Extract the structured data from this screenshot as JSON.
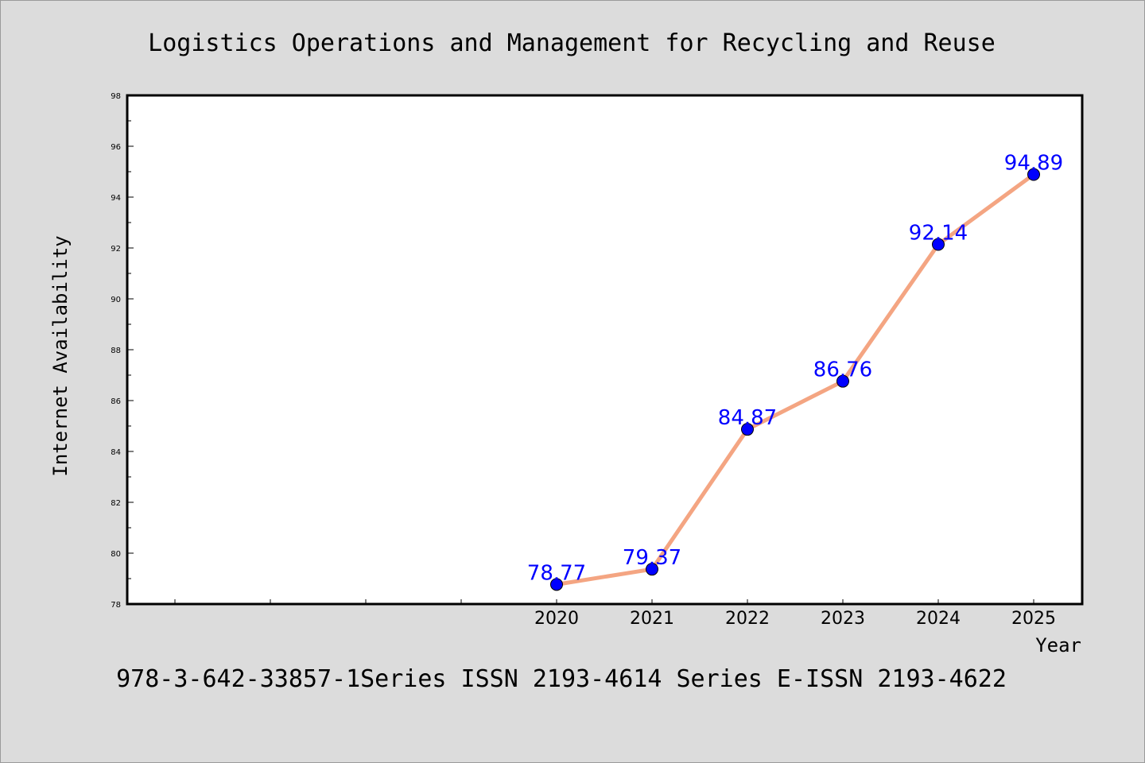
{
  "chart_data": {
    "type": "line",
    "title": "Logistics Operations and Management for Recycling and Reuse",
    "xlabel": "Year",
    "ylabel": "Internet Availability",
    "categories": [
      "2020",
      "2021",
      "2022",
      "2023",
      "2024",
      "2025"
    ],
    "series": [
      {
        "values": [
          78.77,
          79.37,
          84.87,
          86.76,
          92.14,
          94.89
        ]
      }
    ],
    "data_labels": [
      "78.77",
      "79.37",
      "84.87",
      "86.76",
      "92.14",
      "94.89"
    ],
    "ylim": [
      78,
      98
    ],
    "yticks": [
      "78",
      "80",
      "82",
      "84",
      "86",
      "88",
      "90",
      "92",
      "94",
      "96",
      "98"
    ],
    "grid": false,
    "legend": "none",
    "colors": {
      "line": "#f4a582",
      "marker": "#0000ff",
      "data_label": "#0000ff",
      "plot_background": "#ffffff",
      "figure_background": "#dcdcdc"
    }
  },
  "footer": "978-3-642-33857-1Series ISSN 2193-4614 Series E-ISSN 2193-4622"
}
